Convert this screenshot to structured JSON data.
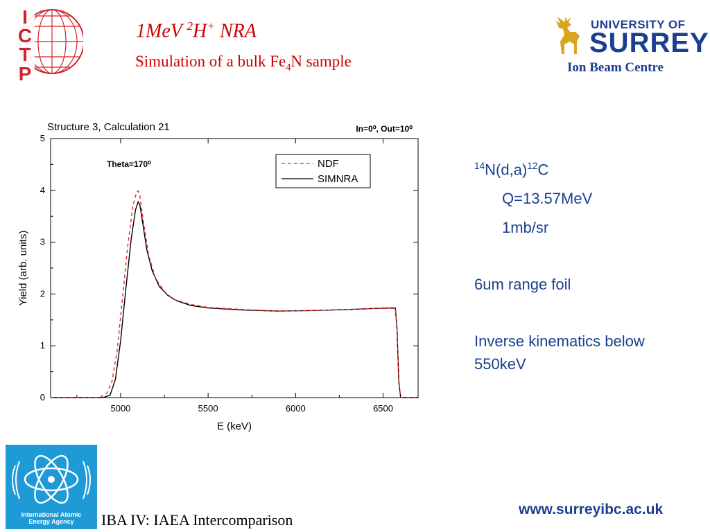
{
  "header": {
    "title_main": "1MeV ",
    "title_isotope": "2",
    "title_ion": "H",
    "title_charge": "+",
    "title_tail": " NRA",
    "subtitle_pre": "Simulation of a bulk Fe",
    "subtitle_sub": "4",
    "subtitle_post": "N sample"
  },
  "logos": {
    "ictp_letters": [
      "I",
      "C",
      "T",
      "P"
    ],
    "surrey_uni": "UNIVERSITY OF",
    "surrey_name": "SURREY",
    "ion_beam_centre": "Ion Beam Centre",
    "iaea_label_1": "International Atomic",
    "iaea_label_2": "Energy Agency"
  },
  "chart_data": {
    "type": "line",
    "title": "Structure 3, Calculation 21",
    "annotation_angles": "In=0⁰,  Out=10⁰",
    "annotation_theta": "Theta=170⁰",
    "xlabel": "E (keV)",
    "ylabel": "Yield (arb. units)",
    "xlim": [
      4600,
      6700
    ],
    "ylim": [
      0,
      5
    ],
    "x_ticks": [
      5000,
      5500,
      6000,
      6500
    ],
    "y_ticks": [
      0,
      1,
      2,
      3,
      4,
      5
    ],
    "legend_position": "top-right",
    "series": [
      {
        "name": "NDF",
        "style": "dashed",
        "color": "#e8242a",
        "x": [
          4600,
          4880,
          4920,
          4950,
          4980,
          5010,
          5040,
          5070,
          5090,
          5100,
          5110,
          5130,
          5160,
          5200,
          5250,
          5300,
          5400,
          5500,
          5700,
          5900,
          6100,
          6300,
          6450,
          6540,
          6570,
          6580,
          6590,
          6600,
          6700
        ],
        "y": [
          0,
          0,
          0.08,
          0.3,
          0.9,
          1.9,
          2.9,
          3.7,
          3.95,
          3.99,
          3.9,
          3.4,
          2.75,
          2.3,
          2.05,
          1.9,
          1.8,
          1.74,
          1.7,
          1.67,
          1.68,
          1.7,
          1.72,
          1.72,
          1.72,
          1.3,
          0.35,
          0,
          0
        ]
      },
      {
        "name": "SIMNRA",
        "style": "solid",
        "color": "#000000",
        "x": [
          4600,
          4900,
          4940,
          4970,
          5000,
          5030,
          5060,
          5085,
          5100,
          5110,
          5125,
          5150,
          5180,
          5220,
          5270,
          5320,
          5400,
          5500,
          5700,
          5900,
          6100,
          6300,
          6450,
          6540,
          6570,
          6580,
          6590,
          6600,
          6700
        ],
        "y": [
          0,
          0,
          0.05,
          0.35,
          1.1,
          2.1,
          3.05,
          3.62,
          3.78,
          3.72,
          3.4,
          2.85,
          2.45,
          2.15,
          1.97,
          1.87,
          1.78,
          1.73,
          1.69,
          1.67,
          1.68,
          1.7,
          1.72,
          1.73,
          1.73,
          1.3,
          0.3,
          0,
          0
        ]
      }
    ]
  },
  "bullets": {
    "reaction_mass1": "14",
    "reaction_mid": "N(d,a)",
    "reaction_mass2": "12",
    "reaction_end": "C",
    "q_value": "Q=13.57MeV",
    "cross_section": "1mb/sr",
    "foil": "6um range foil",
    "inverse_1": "Inverse kinematics below",
    "inverse_2": "550keV"
  },
  "footer": {
    "left_text": "IBA IV:  IAEA Intercomparison",
    "url": "www.surreyibc.ac.uk"
  },
  "colors": {
    "title_red": "#cc0000",
    "surrey_blue": "#1b3f8f",
    "iaea_blue": "#1e9ad6",
    "ictp_red": "#d2232a",
    "ndf_red": "#e8242a"
  }
}
